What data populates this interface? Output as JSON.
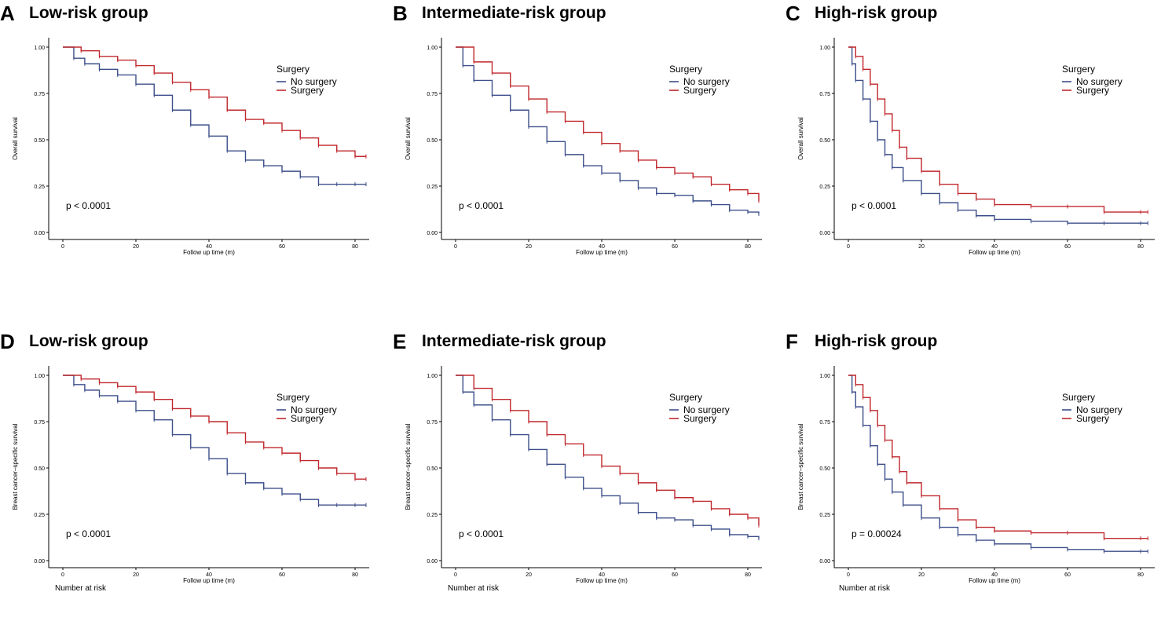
{
  "figure": {
    "number_at_risk_label": "Number at risk"
  },
  "colors": {
    "no_surgery": "#3d4f8a",
    "surgery": "#c0282d",
    "axis": "#000000"
  },
  "chart_data": [
    {
      "letter": "A",
      "title": "Low-risk group",
      "type": "line",
      "ylabel": "Overall survival",
      "xlabel": "Follow up time (m)",
      "xlim": [
        0,
        83
      ],
      "ylim": [
        0,
        1
      ],
      "xticks": [
        0,
        20,
        40,
        60,
        80
      ],
      "yticks": [
        "0.00",
        "0.25",
        "0.50",
        "0.75",
        "1.00"
      ],
      "legend_title": "Surgery",
      "legend_position": "top-right",
      "pvalue": "p < 0.0001",
      "series": [
        {
          "name": "No surgery",
          "x": [
            0,
            3,
            6,
            10,
            15,
            20,
            25,
            30,
            35,
            40,
            45,
            50,
            55,
            60,
            65,
            70,
            75,
            80,
            83
          ],
          "y": [
            1.0,
            0.94,
            0.91,
            0.88,
            0.85,
            0.8,
            0.74,
            0.66,
            0.58,
            0.52,
            0.44,
            0.39,
            0.36,
            0.33,
            0.3,
            0.26,
            0.26,
            0.26,
            0.26
          ]
        },
        {
          "name": "Surgery",
          "x": [
            0,
            5,
            10,
            15,
            20,
            25,
            30,
            35,
            40,
            45,
            50,
            55,
            60,
            65,
            70,
            75,
            80,
            83
          ],
          "y": [
            1.0,
            0.98,
            0.95,
            0.93,
            0.9,
            0.86,
            0.81,
            0.77,
            0.73,
            0.66,
            0.61,
            0.59,
            0.55,
            0.51,
            0.47,
            0.44,
            0.41,
            0.41
          ]
        }
      ]
    },
    {
      "letter": "B",
      "title": "Intermediate-risk group",
      "type": "line",
      "ylabel": "Overall survival",
      "xlabel": "Follow up time (m)",
      "xlim": [
        0,
        83
      ],
      "ylim": [
        0,
        1
      ],
      "xticks": [
        0,
        20,
        40,
        60,
        80
      ],
      "yticks": [
        "0.00",
        "0.25",
        "0.50",
        "0.75",
        "1.00"
      ],
      "legend_title": "Surgery",
      "legend_position": "top-right",
      "pvalue": "p < 0.0001",
      "series": [
        {
          "name": "No surgery",
          "x": [
            0,
            2,
            5,
            10,
            15,
            20,
            25,
            30,
            35,
            40,
            45,
            50,
            55,
            60,
            65,
            70,
            75,
            80,
            83
          ],
          "y": [
            1.0,
            0.9,
            0.82,
            0.74,
            0.66,
            0.57,
            0.49,
            0.42,
            0.36,
            0.32,
            0.28,
            0.24,
            0.21,
            0.2,
            0.17,
            0.15,
            0.12,
            0.11,
            0.1
          ]
        },
        {
          "name": "Surgery",
          "x": [
            0,
            5,
            10,
            15,
            20,
            25,
            30,
            35,
            40,
            45,
            50,
            55,
            60,
            65,
            70,
            75,
            80,
            83
          ],
          "y": [
            1.0,
            0.92,
            0.86,
            0.79,
            0.72,
            0.65,
            0.6,
            0.54,
            0.48,
            0.44,
            0.39,
            0.35,
            0.32,
            0.3,
            0.26,
            0.23,
            0.21,
            0.17
          ]
        }
      ]
    },
    {
      "letter": "C",
      "title": "High-risk group",
      "type": "line",
      "ylabel": "Overall survival",
      "xlabel": "Follow up time (m)",
      "xlim": [
        0,
        83
      ],
      "ylim": [
        0,
        1
      ],
      "xticks": [
        0,
        20,
        40,
        60,
        80
      ],
      "yticks": [
        "0.00",
        "0.25",
        "0.50",
        "0.75",
        "1.00"
      ],
      "legend_title": "Surgery",
      "legend_position": "top-right",
      "pvalue": "p < 0.0001",
      "series": [
        {
          "name": "No surgery",
          "x": [
            0,
            1,
            2,
            4,
            6,
            8,
            10,
            12,
            15,
            20,
            25,
            30,
            35,
            40,
            50,
            60,
            70,
            80,
            82
          ],
          "y": [
            1.0,
            0.91,
            0.82,
            0.72,
            0.6,
            0.5,
            0.42,
            0.35,
            0.28,
            0.21,
            0.16,
            0.12,
            0.09,
            0.07,
            0.06,
            0.05,
            0.05,
            0.05,
            0.05
          ]
        },
        {
          "name": "Surgery",
          "x": [
            0,
            2,
            4,
            6,
            8,
            10,
            12,
            14,
            16,
            20,
            25,
            30,
            35,
            40,
            50,
            60,
            70,
            80,
            82
          ],
          "y": [
            1.0,
            0.95,
            0.88,
            0.8,
            0.72,
            0.64,
            0.55,
            0.46,
            0.4,
            0.33,
            0.26,
            0.21,
            0.18,
            0.15,
            0.14,
            0.14,
            0.11,
            0.11,
            0.11
          ]
        }
      ]
    },
    {
      "letter": "D",
      "title": "Low-risk group",
      "type": "line",
      "ylabel": "Breast cancer–specific survival",
      "xlabel": "Follow up time (m)",
      "xlim": [
        0,
        83
      ],
      "ylim": [
        0,
        1
      ],
      "xticks": [
        0,
        20,
        40,
        60,
        80
      ],
      "yticks": [
        "0.00",
        "0.25",
        "0.50",
        "0.75",
        "1.00"
      ],
      "legend_title": "Surgery",
      "legend_position": "top-right",
      "pvalue": "p < 0.0001",
      "series": [
        {
          "name": "No surgery",
          "x": [
            0,
            3,
            6,
            10,
            15,
            20,
            25,
            30,
            35,
            40,
            45,
            50,
            55,
            60,
            65,
            70,
            75,
            80,
            83
          ],
          "y": [
            1.0,
            0.95,
            0.92,
            0.89,
            0.86,
            0.81,
            0.76,
            0.68,
            0.61,
            0.55,
            0.47,
            0.42,
            0.39,
            0.36,
            0.33,
            0.3,
            0.3,
            0.3,
            0.3
          ]
        },
        {
          "name": "Surgery",
          "x": [
            0,
            5,
            10,
            15,
            20,
            25,
            30,
            35,
            40,
            45,
            50,
            55,
            60,
            65,
            70,
            75,
            80,
            83
          ],
          "y": [
            1.0,
            0.98,
            0.96,
            0.94,
            0.91,
            0.87,
            0.82,
            0.78,
            0.75,
            0.69,
            0.64,
            0.61,
            0.58,
            0.54,
            0.5,
            0.47,
            0.44,
            0.44
          ]
        }
      ]
    },
    {
      "letter": "E",
      "title": "Intermediate-risk group",
      "type": "line",
      "ylabel": "Breast cancer–specific survival",
      "xlabel": "Follow up time (m)",
      "xlim": [
        0,
        83
      ],
      "ylim": [
        0,
        1
      ],
      "xticks": [
        0,
        20,
        40,
        60,
        80
      ],
      "yticks": [
        "0.00",
        "0.25",
        "0.50",
        "0.75",
        "1.00"
      ],
      "legend_title": "Surgery",
      "legend_position": "top-right",
      "pvalue": "p < 0.0001",
      "series": [
        {
          "name": "No surgery",
          "x": [
            0,
            2,
            5,
            10,
            15,
            20,
            25,
            30,
            35,
            40,
            45,
            50,
            55,
            60,
            65,
            70,
            75,
            80,
            83
          ],
          "y": [
            1.0,
            0.91,
            0.84,
            0.76,
            0.68,
            0.6,
            0.52,
            0.45,
            0.39,
            0.35,
            0.31,
            0.26,
            0.23,
            0.22,
            0.19,
            0.17,
            0.14,
            0.13,
            0.12
          ]
        },
        {
          "name": "Surgery",
          "x": [
            0,
            5,
            10,
            15,
            20,
            25,
            30,
            35,
            40,
            45,
            50,
            55,
            60,
            65,
            70,
            75,
            80,
            83
          ],
          "y": [
            1.0,
            0.93,
            0.87,
            0.81,
            0.75,
            0.68,
            0.63,
            0.57,
            0.51,
            0.47,
            0.42,
            0.38,
            0.34,
            0.32,
            0.28,
            0.25,
            0.23,
            0.19
          ]
        }
      ]
    },
    {
      "letter": "F",
      "title": "High-risk group",
      "type": "line",
      "ylabel": "Breast cancer–specific survival",
      "xlabel": "Follow up time (m)",
      "xlim": [
        0,
        83
      ],
      "ylim": [
        0,
        1
      ],
      "xticks": [
        0,
        20,
        40,
        60,
        80
      ],
      "yticks": [
        "0.00",
        "0.25",
        "0.50",
        "0.75",
        "1.00"
      ],
      "legend_title": "Surgery",
      "legend_position": "top-right",
      "pvalue": "p = 0.00024",
      "series": [
        {
          "name": "No surgery",
          "x": [
            0,
            1,
            2,
            4,
            6,
            8,
            10,
            12,
            15,
            20,
            25,
            30,
            35,
            40,
            50,
            60,
            70,
            80,
            82
          ],
          "y": [
            1.0,
            0.91,
            0.83,
            0.73,
            0.62,
            0.52,
            0.44,
            0.37,
            0.3,
            0.23,
            0.18,
            0.14,
            0.11,
            0.09,
            0.07,
            0.06,
            0.05,
            0.05,
            0.05
          ]
        },
        {
          "name": "Surgery",
          "x": [
            0,
            2,
            4,
            6,
            8,
            10,
            12,
            14,
            16,
            20,
            25,
            30,
            35,
            40,
            50,
            60,
            70,
            80,
            82
          ],
          "y": [
            1.0,
            0.95,
            0.88,
            0.81,
            0.73,
            0.65,
            0.56,
            0.48,
            0.42,
            0.35,
            0.28,
            0.22,
            0.18,
            0.16,
            0.15,
            0.15,
            0.12,
            0.12,
            0.12
          ]
        }
      ]
    }
  ]
}
